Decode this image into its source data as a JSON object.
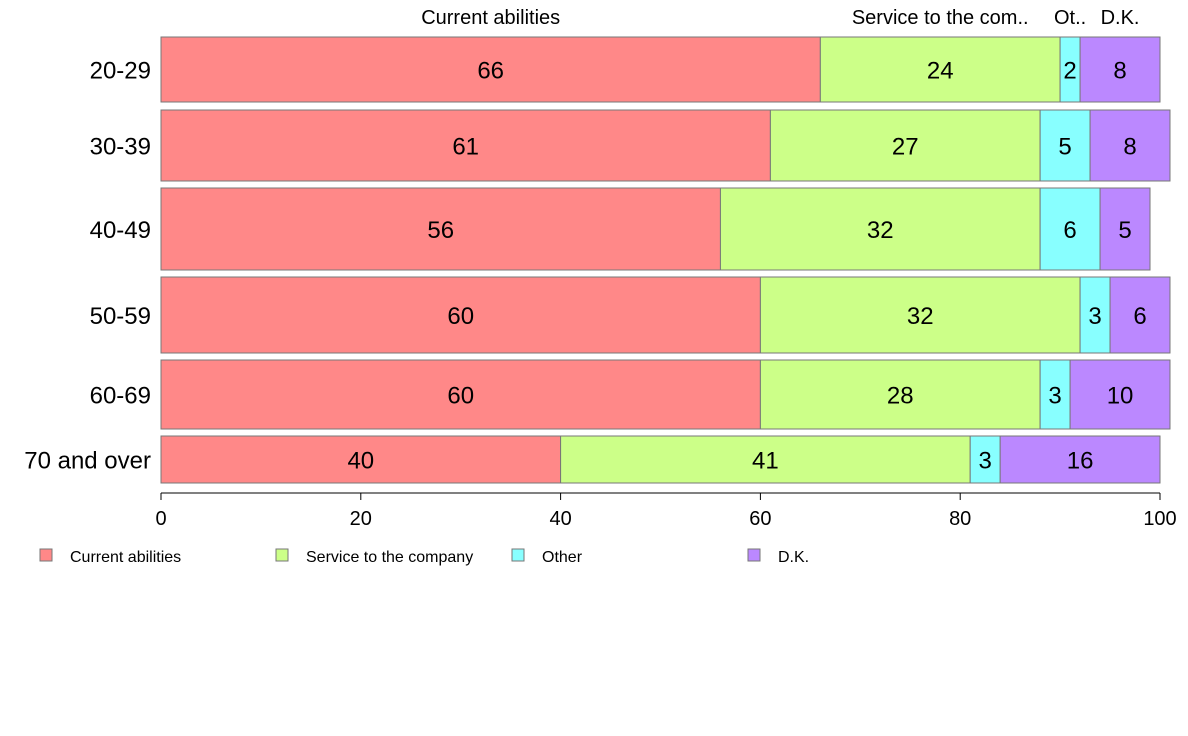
{
  "chart_data": {
    "type": "bar",
    "orientation": "horizontal",
    "stacked": true,
    "categories": [
      "20-29",
      "30-39",
      "40-49",
      "50-59",
      "60-69",
      "70 and over"
    ],
    "series": [
      {
        "name": "Current abilities",
        "values": [
          66,
          61,
          56,
          60,
          60,
          40
        ],
        "color": "#ff8888"
      },
      {
        "name": "Service to the company",
        "values": [
          24,
          27,
          32,
          32,
          28,
          41
        ],
        "color": "#ccff88"
      },
      {
        "name": "Other",
        "values": [
          2,
          5,
          6,
          3,
          3,
          3
        ],
        "color": "#88ffff"
      },
      {
        "name": "D.K.",
        "values": [
          8,
          8,
          5,
          6,
          10,
          16
        ],
        "color": "#bb88ff"
      }
    ],
    "top_labels": [
      "Current abilities",
      "Service to the com..",
      "Ot..",
      "D.K."
    ],
    "xlim": [
      0,
      100
    ],
    "xticks": [
      0,
      20,
      40,
      60,
      80,
      100
    ],
    "legend_position": "bottom-left",
    "grid": false
  }
}
